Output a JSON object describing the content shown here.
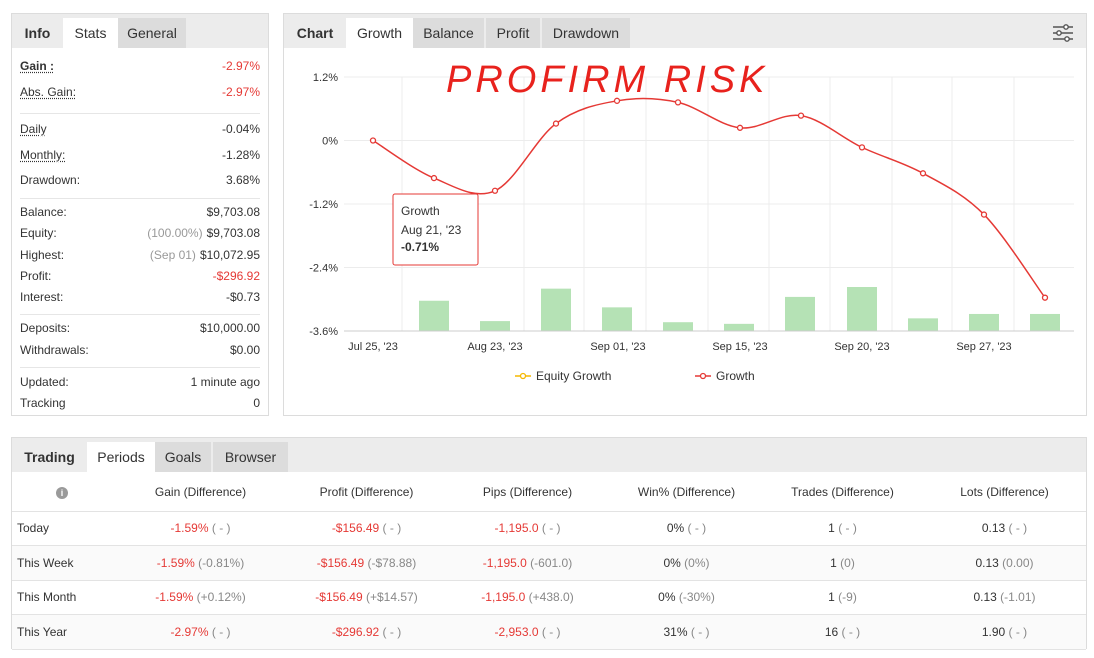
{
  "stats": {
    "tabs": [
      "Info",
      "Stats",
      "General"
    ],
    "gain": {
      "label": "Gain :",
      "value": "-2.97%"
    },
    "abs_gain": {
      "label": "Abs. Gain:",
      "value": "-2.97%"
    },
    "daily": {
      "label": "Daily",
      "value": "-0.04%"
    },
    "monthly": {
      "label": "Monthly:",
      "value": "-1.28%"
    },
    "drawdown": {
      "label": "Drawdown:",
      "value": "3.68%"
    },
    "balance": {
      "label": "Balance:",
      "value": "$9,703.08"
    },
    "equity": {
      "label": "Equity:",
      "pre": "(100.00%)",
      "value": "$9,703.08"
    },
    "highest": {
      "label": "Highest:",
      "pre": "(Sep 01)",
      "value": "$10,072.95"
    },
    "profit": {
      "label": "Profit:",
      "value": "-$296.92"
    },
    "interest": {
      "label": "Interest:",
      "value": "-$0.73"
    },
    "deposits": {
      "label": "Deposits:",
      "value": "$10,000.00"
    },
    "withdrawals": {
      "label": "Withdrawals:",
      "value": "$0.00"
    },
    "updated": {
      "label": "Updated:",
      "value": "1 minute ago"
    },
    "tracking": {
      "label": "Tracking",
      "value": "0"
    }
  },
  "chart_tabs": [
    "Chart",
    "Growth",
    "Balance",
    "Profit",
    "Drawdown"
  ],
  "annotation": "PROFIRM RISK",
  "tooltip": {
    "title": "Growth",
    "date": "Aug 21, '23",
    "value": "-0.71%"
  },
  "chart_data": {
    "type": "line",
    "yticks": [
      "1.2%",
      "0%",
      "-1.2%",
      "-2.4%",
      "-3.6%"
    ],
    "ylim": [
      -3.6,
      1.2
    ],
    "xticks": [
      "Jul 25, '23",
      "Aug 23, '23",
      "Sep 01, '23",
      "Sep 15, '23",
      "Sep 20, '23",
      "Sep 27, '23"
    ],
    "legend": [
      "Equity Growth",
      "Growth"
    ],
    "growth": [
      0.0,
      -0.71,
      -0.95,
      0.32,
      0.75,
      0.72,
      0.24,
      0.47,
      -0.13,
      -0.62,
      -1.4,
      -2.97
    ],
    "bars": [
      0.55,
      0.18,
      0.77,
      0.43,
      0.16,
      0.13,
      0.62,
      0.8,
      0.23,
      0.31,
      0.31
    ],
    "colors": {
      "line": "#e53935",
      "bars": "#b5e2b5",
      "equity": "#f5b800"
    }
  },
  "periods": {
    "tabs": [
      "Trading",
      "Periods",
      "Goals",
      "Browser"
    ],
    "columns": [
      "Gain (Difference)",
      "Profit (Difference)",
      "Pips (Difference)",
      "Win% (Difference)",
      "Trades (Difference)",
      "Lots (Difference)"
    ],
    "rows": [
      {
        "name": "Today",
        "cells": [
          [
            "-1.59%",
            "( - )"
          ],
          [
            "-$156.49",
            "( - )"
          ],
          [
            "-1,195.0",
            "( - )"
          ],
          [
            "0%",
            "( - )"
          ],
          [
            "1",
            "( - )"
          ],
          [
            "0.13",
            "( - )"
          ]
        ]
      },
      {
        "name": "This Week",
        "cells": [
          [
            "-1.59%",
            "(-0.81%)"
          ],
          [
            "-$156.49",
            "(-$78.88)"
          ],
          [
            "-1,195.0",
            "(-601.0)"
          ],
          [
            "0%",
            "(0%)"
          ],
          [
            "1",
            "(0)"
          ],
          [
            "0.13",
            "(0.00)"
          ]
        ]
      },
      {
        "name": "This Month",
        "cells": [
          [
            "-1.59%",
            "(+0.12%)"
          ],
          [
            "-$156.49",
            "(+$14.57)"
          ],
          [
            "-1,195.0",
            "(+438.0)"
          ],
          [
            "0%",
            "(-30%)"
          ],
          [
            "1",
            "(-9)"
          ],
          [
            "0.13",
            "(-1.01)"
          ]
        ]
      },
      {
        "name": "This Year",
        "cells": [
          [
            "-2.97%",
            "( - )"
          ],
          [
            "-$296.92",
            "( - )"
          ],
          [
            "-2,953.0",
            "( - )"
          ],
          [
            "31%",
            "( - )"
          ],
          [
            "16",
            "( - )"
          ],
          [
            "1.90",
            "( - )"
          ]
        ]
      }
    ]
  }
}
